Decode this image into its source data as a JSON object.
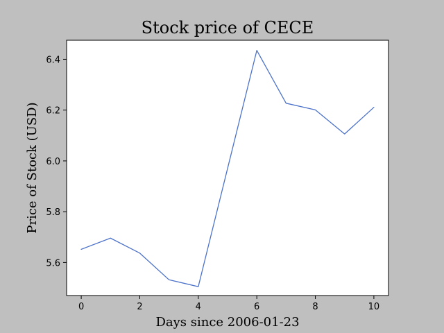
{
  "chart_data": {
    "type": "line",
    "title": "Stock price of CECE",
    "xlabel": "Days since 2006-01-23",
    "ylabel": "Price of Stock (USD)",
    "x": [
      0,
      1,
      2,
      3,
      4,
      5,
      6,
      7,
      8,
      9,
      10
    ],
    "series": [
      {
        "values": [
          5.652,
          5.696,
          5.637,
          5.532,
          5.505,
          5.97,
          6.435,
          6.227,
          6.201,
          6.106,
          6.211
        ],
        "color": "#4c72c9"
      }
    ],
    "xlim": [
      -0.5,
      10.5
    ],
    "ylim": [
      5.47,
      6.475
    ],
    "xticks": [
      0,
      2,
      4,
      6,
      8,
      10
    ],
    "yticks": [
      5.6,
      5.8,
      6.0,
      6.2,
      6.4
    ],
    "xtick_labels": [
      "0",
      "2",
      "4",
      "6",
      "8",
      "10"
    ],
    "ytick_labels": [
      "5.6",
      "5.8",
      "6.0",
      "6.2",
      "6.4"
    ],
    "grid": false,
    "background_color": "#bfbfbf",
    "plot_background_color": "#ffffff"
  }
}
